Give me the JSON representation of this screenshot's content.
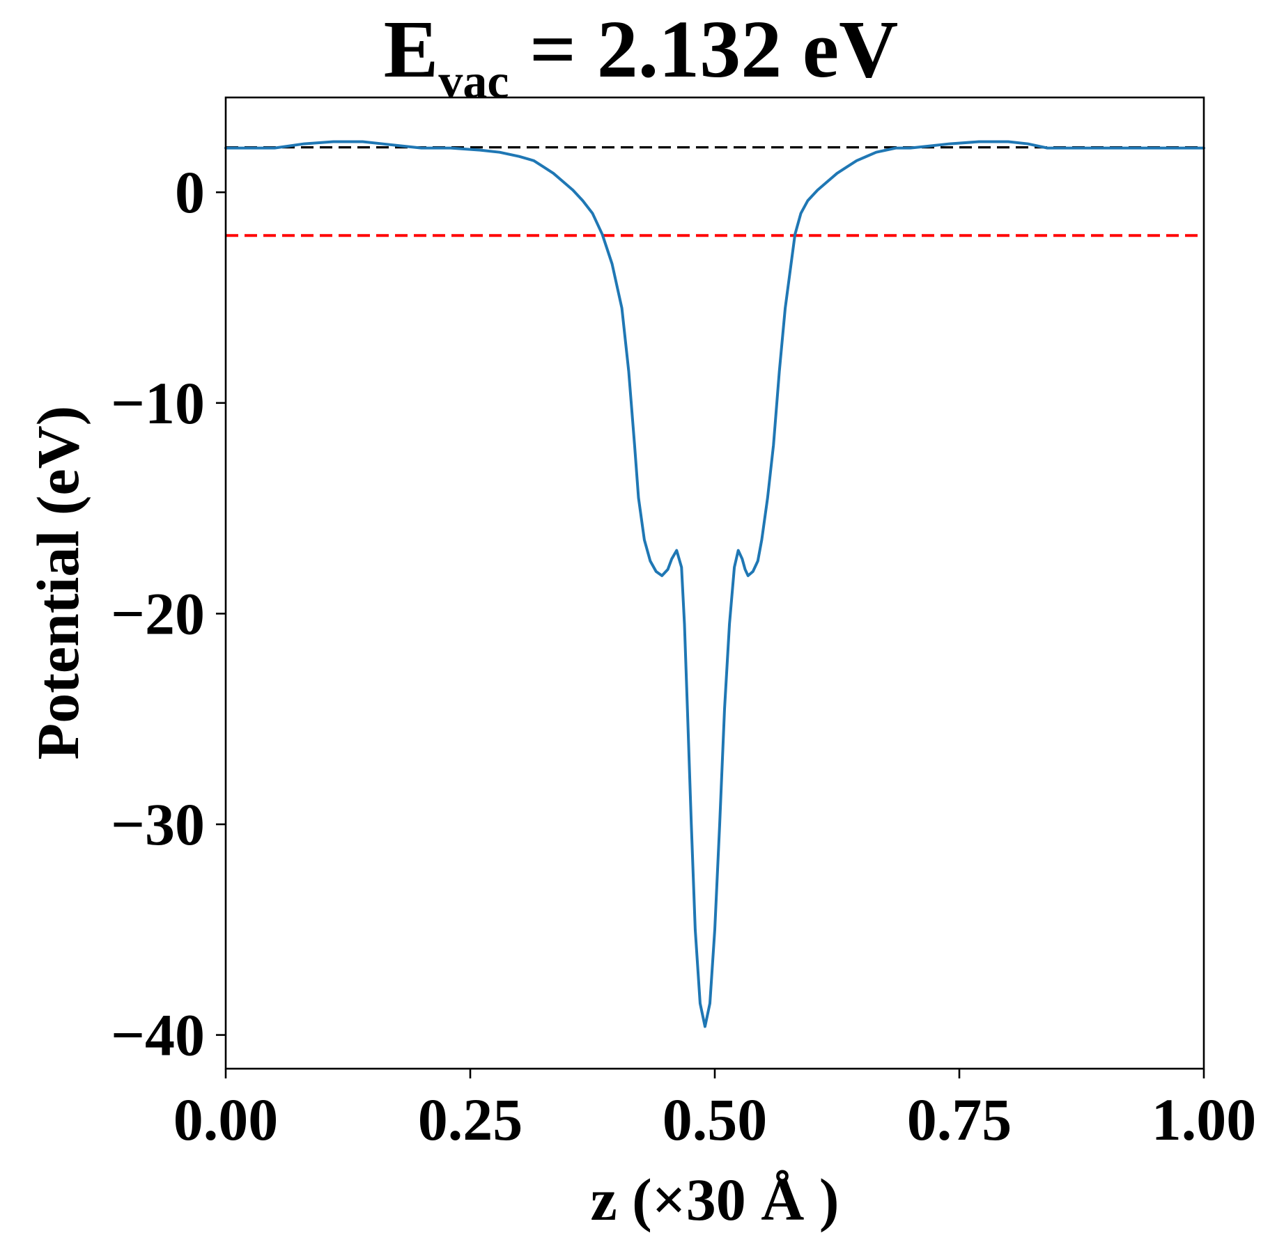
{
  "chart_data": {
    "type": "line",
    "title": {
      "main": "E",
      "subscript": "vac",
      "rest": " = 2.132 eV"
    },
    "xlabel": "z (×30 Å )",
    "ylabel": "Potential (eV)",
    "xlim": [
      0,
      1
    ],
    "ylim": [
      -41.6,
      4.5
    ],
    "xticks": [
      {
        "value": 0.0,
        "label": "0.00"
      },
      {
        "value": 0.25,
        "label": "0.25"
      },
      {
        "value": 0.5,
        "label": "0.50"
      },
      {
        "value": 0.75,
        "label": "0.75"
      },
      {
        "value": 1.0,
        "label": "1.00"
      }
    ],
    "yticks": [
      {
        "value": 0,
        "label": "0"
      },
      {
        "value": -10,
        "label": "−10"
      },
      {
        "value": -20,
        "label": "−20"
      },
      {
        "value": -30,
        "label": "−30"
      },
      {
        "value": -40,
        "label": "−40"
      }
    ],
    "grid": false,
    "series": [
      {
        "color": "#1f77b4",
        "x": [
          0.0,
          0.05,
          0.08,
          0.11,
          0.14,
          0.16,
          0.18,
          0.2,
          0.23,
          0.26,
          0.28,
          0.3,
          0.315,
          0.325,
          0.335,
          0.345,
          0.355,
          0.365,
          0.375,
          0.385,
          0.395,
          0.405,
          0.412,
          0.418,
          0.422,
          0.428,
          0.434,
          0.44,
          0.446,
          0.452,
          0.456,
          0.461,
          0.466,
          0.469,
          0.472,
          0.476,
          0.48,
          0.485,
          0.49,
          0.495,
          0.5,
          0.505,
          0.51,
          0.515,
          0.52,
          0.524,
          0.528,
          0.531,
          0.534,
          0.539,
          0.544,
          0.548,
          0.554,
          0.56,
          0.566,
          0.572,
          0.578,
          0.582,
          0.588,
          0.595,
          0.605,
          0.615,
          0.625,
          0.635,
          0.645,
          0.655,
          0.665,
          0.675,
          0.685,
          0.7,
          0.72,
          0.74,
          0.77,
          0.8,
          0.82,
          0.84,
          0.86,
          0.89,
          0.92,
          0.95,
          1.0
        ],
        "y": [
          2.1,
          2.1,
          2.3,
          2.4,
          2.4,
          2.3,
          2.2,
          2.1,
          2.1,
          2.0,
          1.9,
          1.7,
          1.5,
          1.2,
          0.9,
          0.5,
          0.1,
          -0.4,
          -1.0,
          -2.0,
          -3.4,
          -5.5,
          -8.5,
          -12.0,
          -14.5,
          -16.5,
          -17.5,
          -18.0,
          -18.2,
          -17.9,
          -17.4,
          -17.0,
          -17.8,
          -20.5,
          -24.5,
          -30.0,
          -35.0,
          -38.5,
          -39.6,
          -38.5,
          -35.0,
          -30.0,
          -24.5,
          -20.5,
          -17.8,
          -17.0,
          -17.4,
          -17.9,
          -18.2,
          -18.0,
          -17.5,
          -16.5,
          -14.5,
          -12.0,
          -8.5,
          -5.5,
          -3.4,
          -2.0,
          -1.0,
          -0.4,
          0.1,
          0.5,
          0.9,
          1.2,
          1.5,
          1.7,
          1.9,
          2.0,
          2.1,
          2.1,
          2.2,
          2.3,
          2.4,
          2.4,
          2.3,
          2.1,
          2.1,
          2.1,
          2.1,
          2.1,
          2.1
        ]
      }
    ],
    "hlines": [
      {
        "y": 2.132,
        "color": "#000000",
        "style": "dashed"
      },
      {
        "y": -2.05,
        "color": "#ff0000",
        "style": "dashed"
      }
    ]
  }
}
